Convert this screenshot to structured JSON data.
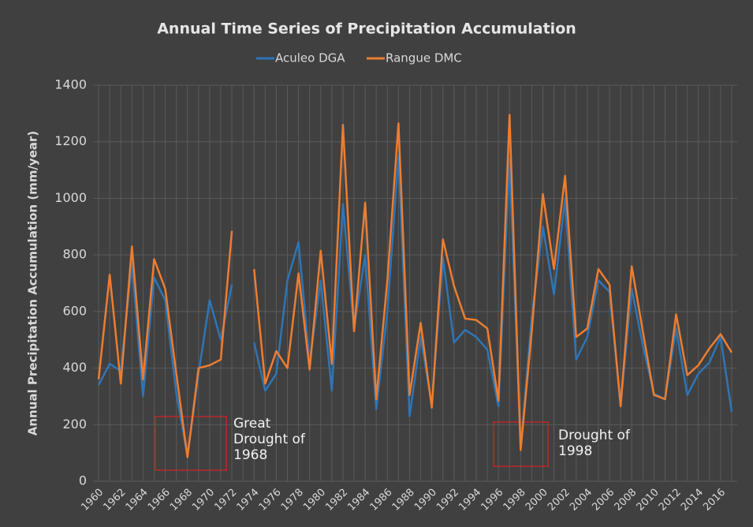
{
  "chart_data": {
    "type": "line",
    "title": "Annual Time Series of Precipitation Accumulation",
    "y_label": "Annual Precipitation Accumulation (mm/year)",
    "x": [
      1960,
      1961,
      1962,
      1963,
      1964,
      1965,
      1966,
      1967,
      1968,
      1969,
      1970,
      1971,
      1972,
      1973,
      1974,
      1975,
      1976,
      1977,
      1978,
      1979,
      1980,
      1981,
      1982,
      1983,
      1984,
      1985,
      1986,
      1987,
      1988,
      1989,
      1990,
      1991,
      1992,
      1993,
      1994,
      1995,
      1996,
      1997,
      1998,
      1999,
      2000,
      2001,
      2002,
      2003,
      2004,
      2005,
      2006,
      2007,
      2008,
      2009,
      2010,
      2011,
      2012,
      2013,
      2014,
      2015,
      2016,
      2017
    ],
    "xlim": [
      1960,
      2017
    ],
    "xticks": [
      1960,
      1962,
      1964,
      1966,
      1968,
      1970,
      1972,
      1974,
      1976,
      1978,
      1980,
      1982,
      1984,
      1986,
      1988,
      1990,
      1992,
      1994,
      1996,
      1998,
      2000,
      2002,
      2004,
      2006,
      2008,
      2010,
      2012,
      2014,
      2016
    ],
    "ylim": [
      0,
      1400
    ],
    "yticks": [
      0,
      200,
      400,
      600,
      800,
      1000,
      1200,
      1400
    ],
    "grid": true,
    "legend": "top",
    "series": [
      {
        "name": "Aculeo DGA",
        "color": "#2e75b6",
        "values": [
          340,
          415,
          390,
          770,
          300,
          720,
          640,
          310,
          90,
          380,
          640,
          500,
          695,
          null,
          490,
          320,
          380,
          710,
          845,
          420,
          710,
          320,
          980,
          540,
          800,
          255,
          600,
          1150,
          230,
          510,
          270,
          790,
          490,
          535,
          510,
          465,
          265,
          1140,
          120,
          580,
          900,
          660,
          1000,
          430,
          510,
          710,
          670,
          270,
          680,
          480,
          310,
          290,
          540,
          305,
          380,
          420,
          510,
          245
        ]
      },
      {
        "name": "Rangue DMC",
        "color": "#ed7d31",
        "values": [
          360,
          730,
          345,
          830,
          360,
          785,
          680,
          380,
          85,
          400,
          410,
          430,
          885,
          null,
          750,
          345,
          460,
          400,
          735,
          395,
          815,
          415,
          1260,
          530,
          985,
          290,
          710,
          1265,
          305,
          560,
          260,
          855,
          690,
          575,
          570,
          540,
          285,
          1295,
          110,
          530,
          1015,
          750,
          1080,
          510,
          540,
          750,
          695,
          265,
          760,
          530,
          305,
          290,
          590,
          375,
          410,
          470,
          520,
          455
        ]
      }
    ],
    "annotations": [
      {
        "lines": [
          "Great",
          "Drought of",
          "1968"
        ]
      },
      {
        "lines": [
          "Drought of",
          "1998"
        ]
      }
    ]
  }
}
